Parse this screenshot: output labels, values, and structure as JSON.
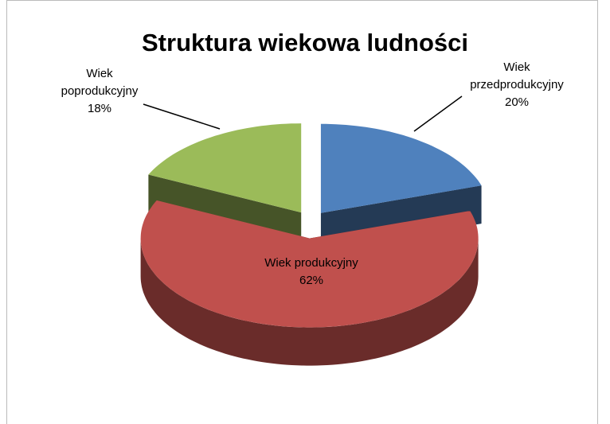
{
  "chart_data": {
    "type": "pie3d",
    "title": "Struktura wiekowa ludności",
    "categories": [
      "Wiek przedprodukcyjny",
      "Wiek produkcyjny",
      "Wiek poprodukcyjny"
    ],
    "values": [
      20,
      62,
      18
    ],
    "value_labels": [
      "20%",
      "62%",
      "18%"
    ],
    "colors": [
      "#4f81bd",
      "#c0504d",
      "#9bbb59"
    ]
  }
}
